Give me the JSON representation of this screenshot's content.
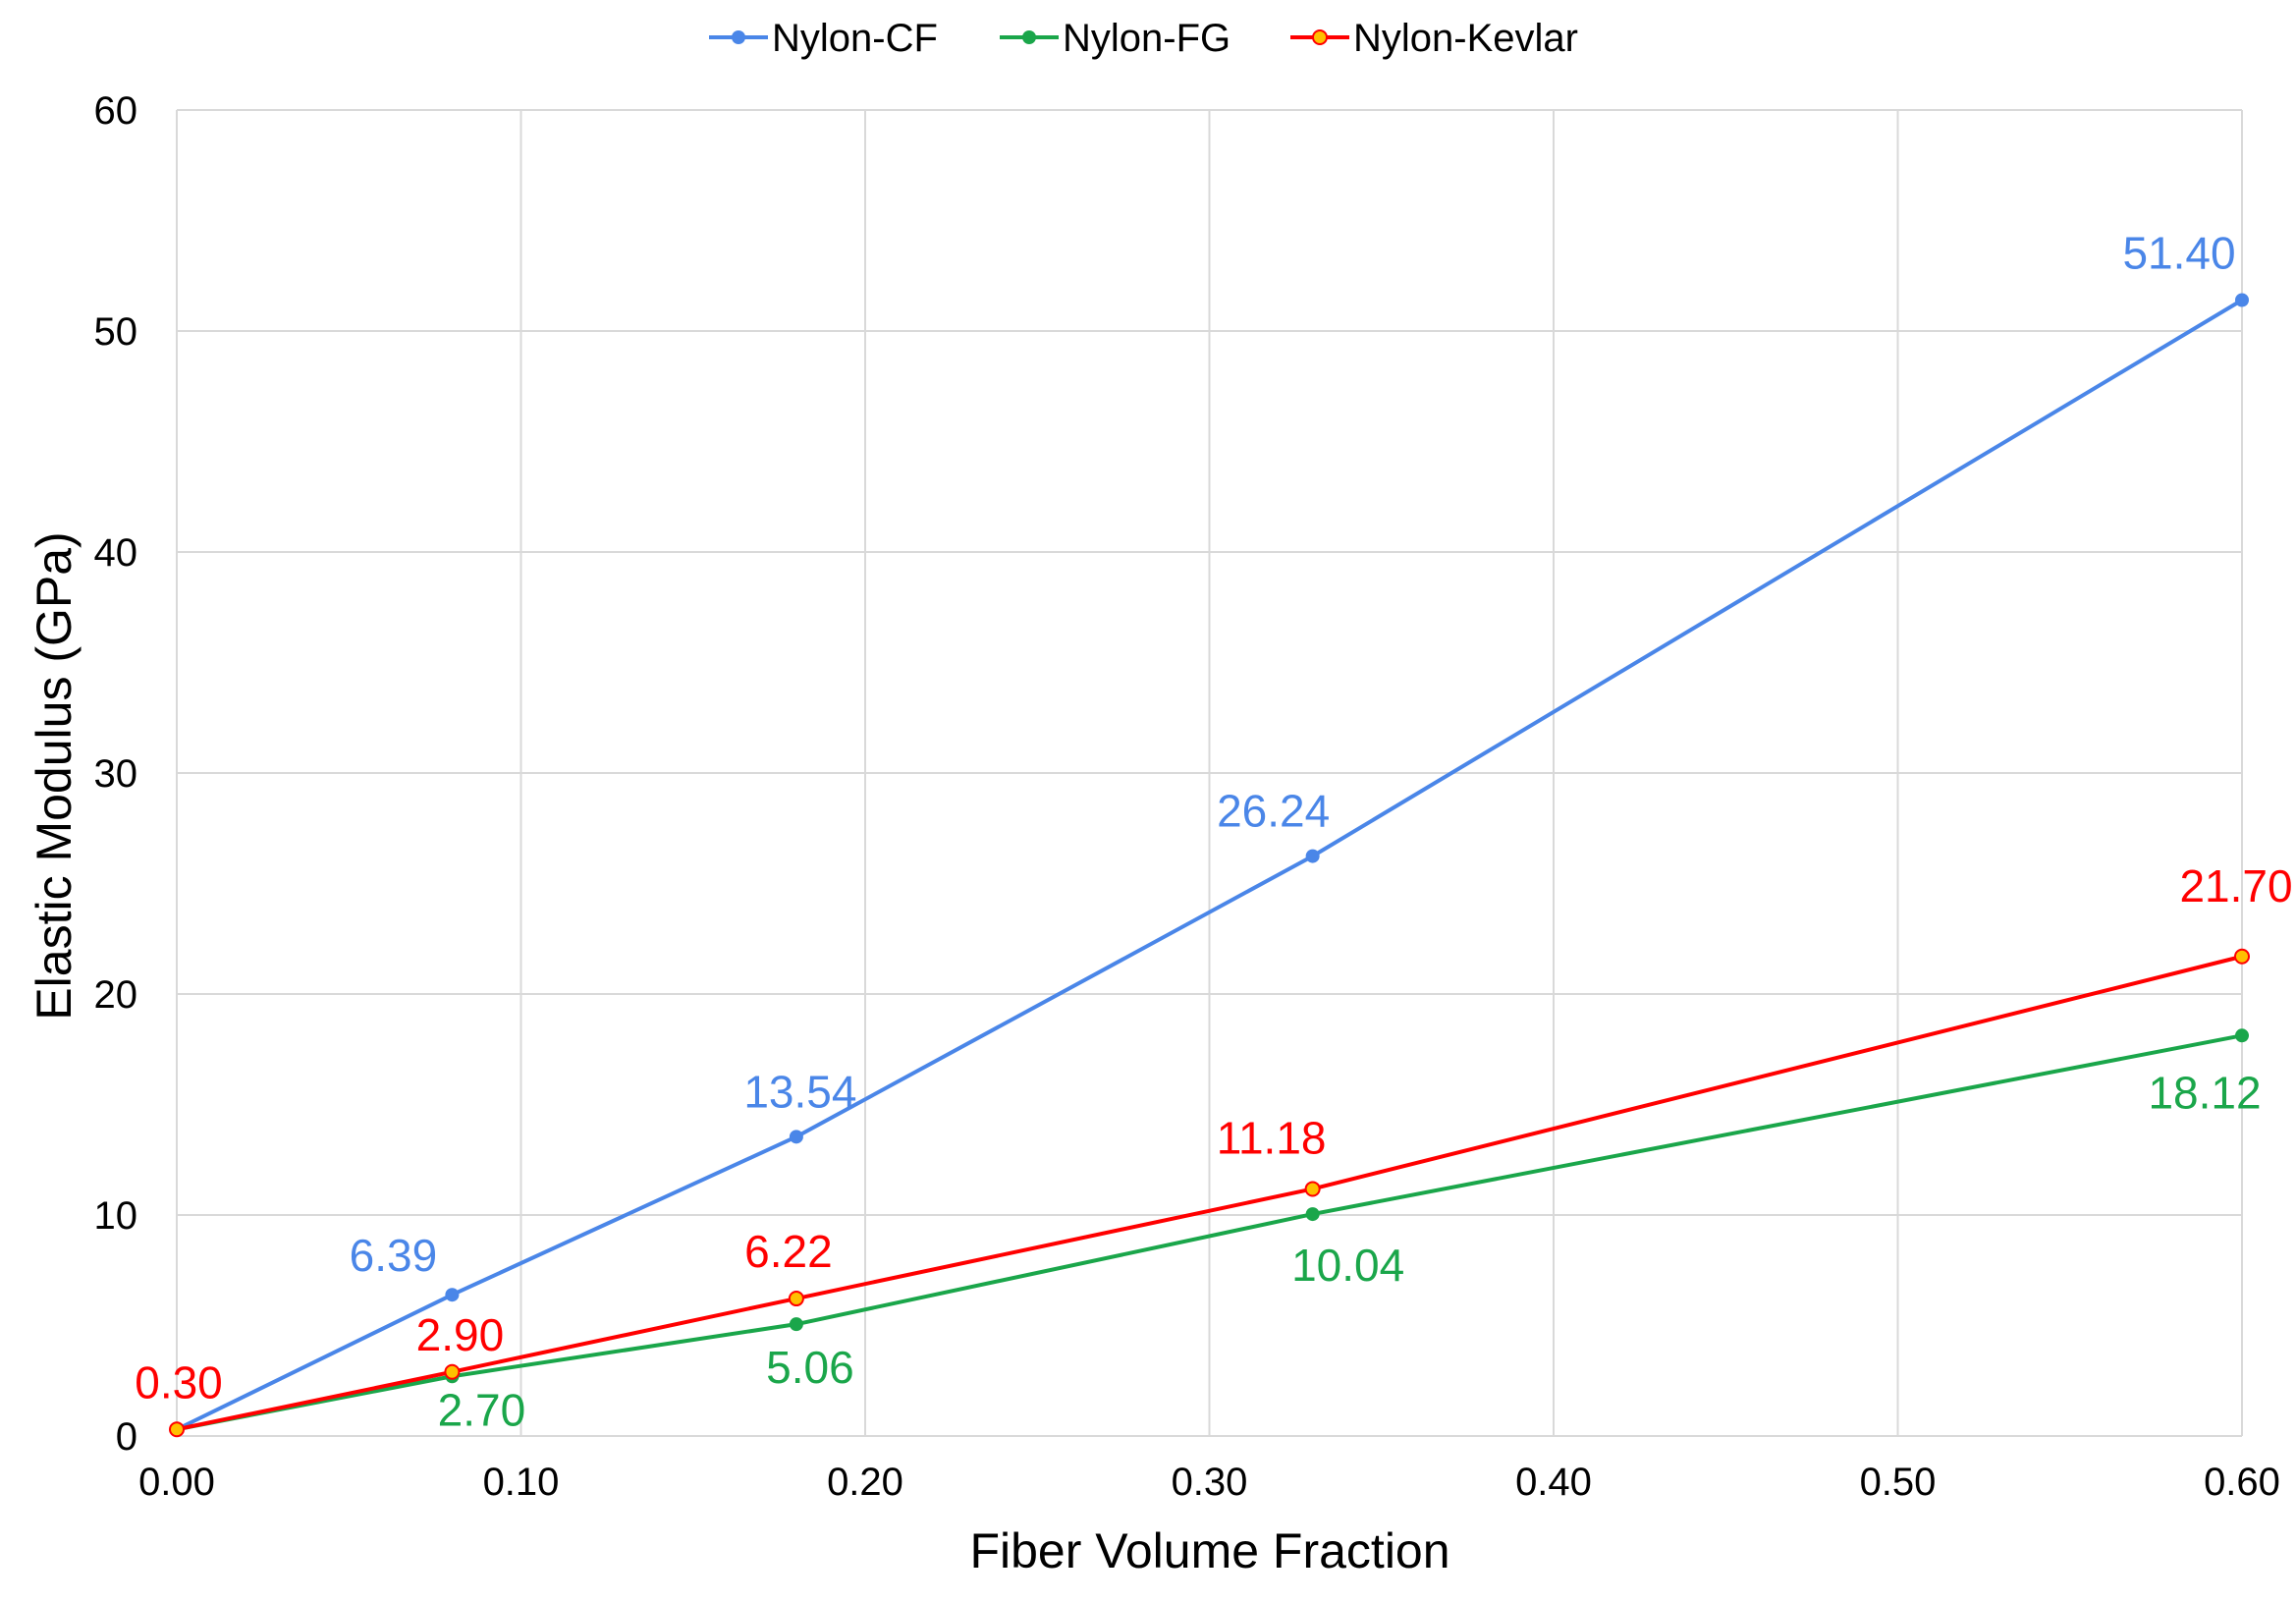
{
  "chart_data": {
    "type": "line",
    "title": "",
    "xlabel": "Fiber Volume Fraction",
    "ylabel": "Elastic Modulus (GPa)",
    "xlim": [
      0,
      0.6
    ],
    "ylim": [
      0,
      60
    ],
    "x_ticks": [
      "0.00",
      "0.10",
      "0.20",
      "0.30",
      "0.40",
      "0.50",
      "0.60"
    ],
    "y_ticks": [
      "0",
      "10",
      "20",
      "30",
      "40",
      "50",
      "60"
    ],
    "grid": true,
    "legend_position": "top",
    "x": [
      0.0,
      0.08,
      0.18,
      0.33,
      0.6
    ],
    "series": [
      {
        "name": "Nylon-CF",
        "color": "#4a86e8",
        "marker_color": "#4a86e8",
        "values": [
          0.3,
          6.39,
          13.54,
          26.24,
          51.4
        ],
        "labels": [
          "",
          "6.39",
          "13.54",
          "26.24",
          "51.40"
        ]
      },
      {
        "name": "Nylon-FG",
        "color": "#1aa64a",
        "marker_color": "#1aa64a",
        "values": [
          0.3,
          2.7,
          5.06,
          10.04,
          18.12
        ],
        "labels": [
          "",
          "2.70",
          "5.06",
          "10.04",
          "18.12"
        ]
      },
      {
        "name": "Nylon-Kevlar",
        "color": "#ff0000",
        "marker_color": "#ffc000",
        "values": [
          0.3,
          2.9,
          6.22,
          11.18,
          21.7
        ],
        "labels": [
          "0.30",
          "2.90",
          "6.22",
          "11.18",
          "21.70"
        ]
      }
    ]
  }
}
